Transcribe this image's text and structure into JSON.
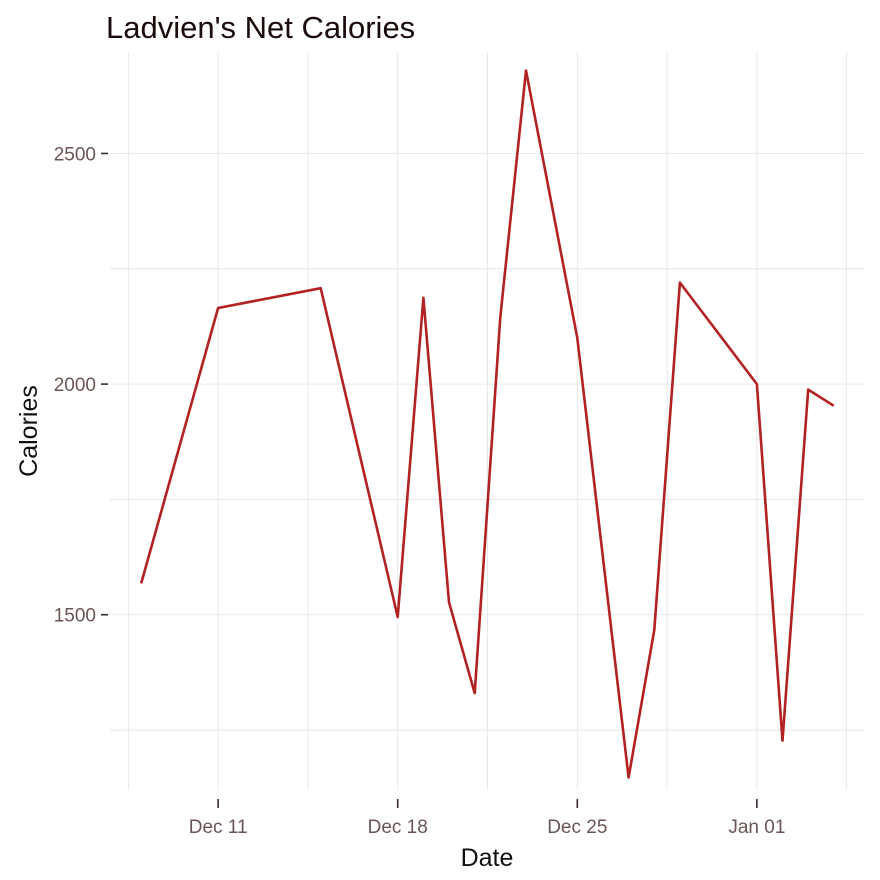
{
  "chart_data": {
    "type": "line",
    "title": "Ladvien's Net Calories",
    "xlabel": "Date",
    "ylabel": "Calories",
    "x_axis_type": "date",
    "xlim": [
      "2019-12-08",
      "2020-01-04"
    ],
    "ylim": [
      1120,
      2720
    ],
    "grid": true,
    "x_ticks": [
      {
        "date": "2019-12-11",
        "label": "Dec 11"
      },
      {
        "date": "2019-12-18",
        "label": "Dec 18"
      },
      {
        "date": "2019-12-25",
        "label": "Dec 25"
      },
      {
        "date": "2020-01-01",
        "label": "Jan 01"
      }
    ],
    "y_ticks": [
      1500,
      2000,
      2500
    ],
    "series": [
      {
        "color": "#b22222",
        "points": [
          {
            "x": "2019-12-08",
            "y": 1568
          },
          {
            "x": "2019-12-11",
            "y": 2165
          },
          {
            "x": "2019-12-15",
            "y": 2208
          },
          {
            "x": "2019-12-18",
            "y": 1495
          },
          {
            "x": "2019-12-19",
            "y": 2187
          },
          {
            "x": "2019-12-20",
            "y": 1527
          },
          {
            "x": "2019-12-21",
            "y": 1330
          },
          {
            "x": "2019-12-22",
            "y": 2145
          },
          {
            "x": "2019-12-23",
            "y": 2680
          },
          {
            "x": "2019-12-25",
            "y": 2100
          },
          {
            "x": "2019-12-27",
            "y": 1147
          },
          {
            "x": "2019-12-28",
            "y": 1467
          },
          {
            "x": "2019-12-29",
            "y": 2220
          },
          {
            "x": "2020-01-01",
            "y": 2000
          },
          {
            "x": "2020-01-02",
            "y": 1227
          },
          {
            "x": "2020-01-03",
            "y": 1988
          },
          {
            "x": "2020-01-04",
            "y": 1953
          }
        ]
      }
    ]
  }
}
